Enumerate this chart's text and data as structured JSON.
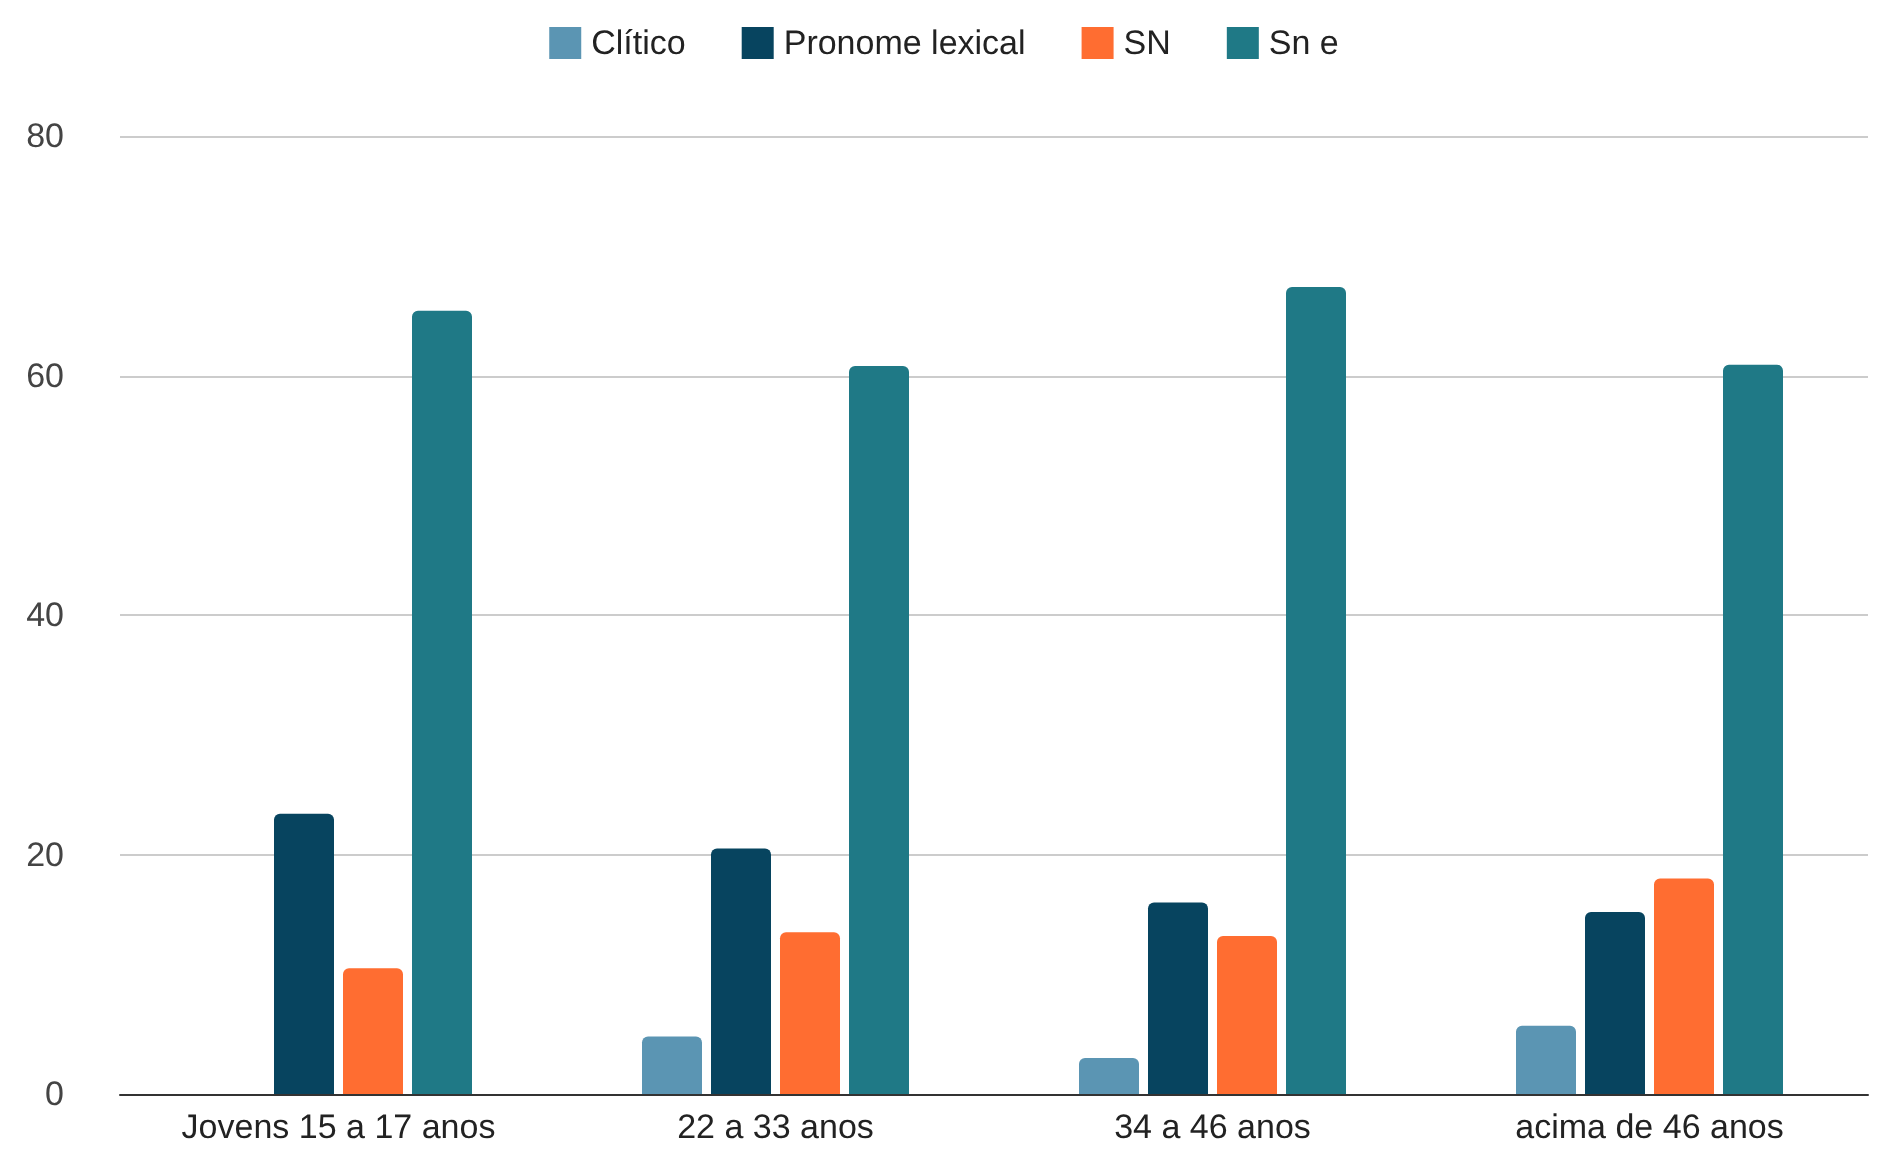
{
  "chart_data": {
    "type": "bar",
    "categories": [
      "Jovens 15 a 17 anos",
      "22 a 33 anos",
      "34 a 46 anos",
      "acima de 46 anos"
    ],
    "series": [
      {
        "name": "Clítico",
        "color": "#5b95b3",
        "values": [
          0,
          4.8,
          3.0,
          5.7
        ]
      },
      {
        "name": "Pronome lexical",
        "color": "#07445f",
        "values": [
          23.4,
          20.5,
          16.0,
          15.2
        ]
      },
      {
        "name": "SN",
        "color": "#ff6d31",
        "values": [
          10.5,
          13.5,
          13.2,
          18.0
        ]
      },
      {
        "name": "Sn e",
        "color": "#1f7986",
        "values": [
          65.4,
          60.8,
          67.4,
          60.9
        ]
      }
    ],
    "ylim": [
      0,
      80
    ],
    "yticks": [
      0,
      20,
      40,
      60,
      80
    ],
    "grid": "y",
    "legend": "top"
  }
}
